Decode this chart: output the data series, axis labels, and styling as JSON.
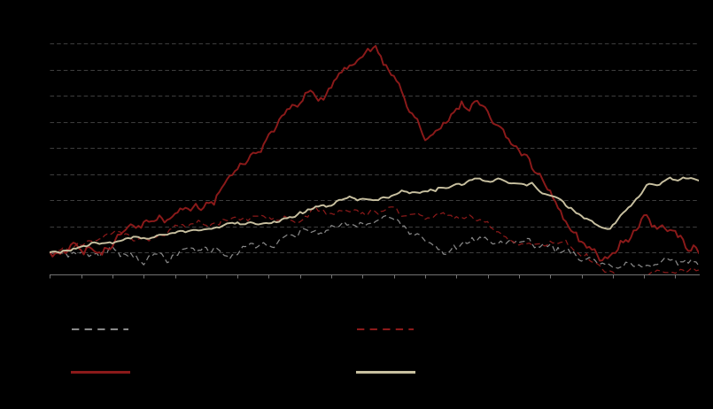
{
  "background_color": "#000000",
  "plot_bg_color": "#000000",
  "n_points": 250,
  "seed": 7,
  "line1_color": "#888888",
  "line2_color": "#8B1A1A",
  "line3_color": "#8B1A1A",
  "line4_color": "#C8C0A0",
  "grid_color": "#666666",
  "ylim_min": -0.15,
  "ylim_max": 1.6,
  "grid_interval": 0.18
}
